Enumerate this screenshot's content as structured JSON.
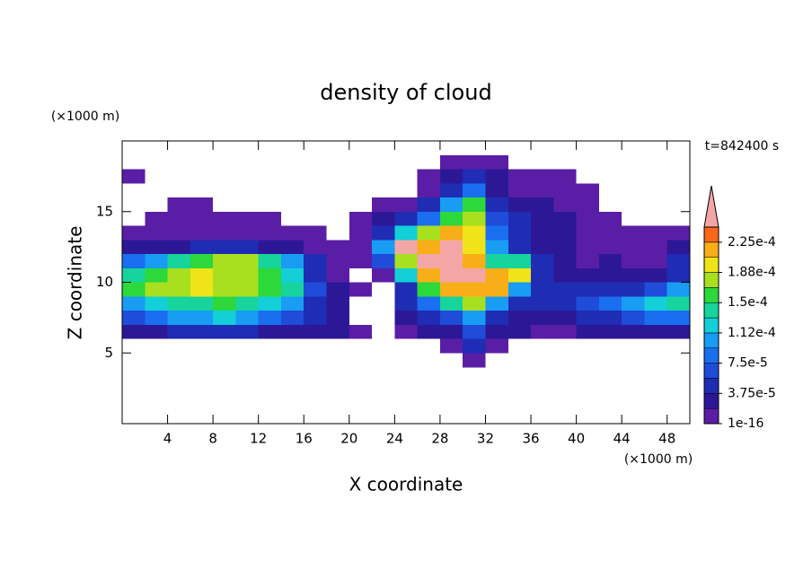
{
  "chart_data": {
    "type": "contour",
    "title": "density of cloud",
    "x_label": "X coordinate",
    "y_label": "Z coordinate",
    "y_unit": "(×1000 m)",
    "x_unit": "(×1000 m)",
    "annotation": "t=842400 s",
    "xlim": [
      0,
      50
    ],
    "ylim": [
      0,
      20
    ],
    "xticks": [
      4,
      8,
      12,
      16,
      20,
      24,
      28,
      32,
      36,
      40,
      44,
      48
    ],
    "yticks": [
      5,
      10,
      15
    ],
    "x": [
      1,
      3,
      5,
      7,
      9,
      11,
      13,
      15,
      17,
      19,
      21,
      23,
      25,
      27,
      29,
      31,
      33,
      35,
      37,
      39,
      41,
      43,
      45,
      47,
      49
    ],
    "y": [
      18.5,
      17.5,
      16.5,
      15.5,
      14.5,
      13.5,
      12.5,
      11.5,
      10.5,
      9.5,
      8.5,
      7.5,
      6.5,
      5.5,
      4.5
    ],
    "z": [
      [
        0,
        0,
        0,
        0,
        0,
        0,
        0,
        0,
        0,
        0,
        0,
        0,
        0,
        0,
        1e-05,
        1e-05,
        1e-05,
        0,
        0,
        0,
        0,
        0,
        0,
        0,
        0
      ],
      [
        1e-05,
        0,
        0,
        0,
        0,
        0,
        0,
        0,
        0,
        0,
        0,
        0,
        0,
        1e-05,
        2.8e-05,
        4.7e-05,
        2.8e-05,
        1e-05,
        1e-05,
        1e-05,
        0,
        0,
        0,
        0,
        0
      ],
      [
        0,
        0,
        0,
        0,
        0,
        0,
        0,
        0,
        0,
        0,
        0,
        0,
        0,
        1e-05,
        4.7e-05,
        8.4e-05,
        2.8e-05,
        1e-05,
        1e-05,
        1e-05,
        1e-05,
        0,
        0,
        0,
        0
      ],
      [
        0,
        0,
        1e-05,
        1e-05,
        0,
        0,
        0,
        0,
        0,
        0,
        0,
        1e-05,
        1e-05,
        4.7e-05,
        0.000103,
        0.000159,
        4.7e-05,
        2.8e-05,
        2.8e-05,
        1e-05,
        1e-05,
        0,
        0,
        0,
        0
      ],
      [
        0,
        1e-05,
        1e-05,
        1e-05,
        1e-05,
        1e-05,
        1e-05,
        0,
        0,
        0,
        1e-05,
        2.8e-05,
        4.7e-05,
        8.4e-05,
        0.000159,
        0.000178,
        6.6e-05,
        4.7e-05,
        2.8e-05,
        2.8e-05,
        1e-05,
        1e-05,
        0,
        0,
        0
      ],
      [
        1e-05,
        1e-05,
        1e-05,
        1e-05,
        1e-05,
        1e-05,
        1e-05,
        1e-05,
        1e-05,
        0,
        1e-05,
        4.7e-05,
        0.000122,
        0.000178,
        0.000216,
        0.000197,
        8.4e-05,
        4.7e-05,
        2.8e-05,
        2.8e-05,
        1e-05,
        1e-05,
        1e-05,
        1e-05,
        1e-05
      ],
      [
        2.8e-05,
        2.8e-05,
        2.8e-05,
        4.7e-05,
        4.7e-05,
        4.7e-05,
        2.8e-05,
        2.8e-05,
        1e-05,
        1e-05,
        1e-05,
        0.000103,
        0.00026,
        0.000216,
        0.00026,
        0.000197,
        0.000103,
        4.7e-05,
        2.8e-05,
        2.8e-05,
        1e-05,
        1e-05,
        1e-05,
        1e-05,
        2.8e-05
      ],
      [
        8.4e-05,
        0.000103,
        0.000141,
        0.000159,
        0.000178,
        0.000178,
        0.000141,
        0.000103,
        4.7e-05,
        1e-05,
        1e-05,
        6.6e-05,
        0.000178,
        0.00026,
        0.00026,
        0.000216,
        0.000141,
        0.000141,
        4.7e-05,
        2.8e-05,
        1e-05,
        2.8e-05,
        1e-05,
        1e-05,
        4.7e-05
      ],
      [
        0.000141,
        0.000159,
        0.000178,
        0.000197,
        0.000178,
        0.000178,
        0.000159,
        0.000122,
        4.7e-05,
        1e-05,
        0,
        1e-05,
        0.000122,
        0.000216,
        0.00026,
        0.00026,
        0.000216,
        0.000197,
        4.7e-05,
        2.8e-05,
        2.8e-05,
        2.8e-05,
        2.8e-05,
        2.8e-05,
        4.7e-05
      ],
      [
        0.000159,
        0.000178,
        0.000178,
        0.000197,
        0.000178,
        0.000178,
        0.000159,
        0.000141,
        6.6e-05,
        2.8e-05,
        1e-05,
        0,
        4.7e-05,
        0.000159,
        0.000216,
        0.000216,
        0.000216,
        0.000103,
        4.7e-05,
        4.7e-05,
        4.7e-05,
        4.7e-05,
        4.7e-05,
        6.6e-05,
        0.000103
      ],
      [
        0.000103,
        0.000122,
        0.000141,
        0.000141,
        0.000159,
        0.000141,
        0.000122,
        0.000103,
        4.7e-05,
        2.8e-05,
        0,
        0,
        4.7e-05,
        8.4e-05,
        0.000141,
        0.000178,
        0.000103,
        4.7e-05,
        4.7e-05,
        4.7e-05,
        6.6e-05,
        8.4e-05,
        0.000103,
        0.000122,
        0.000141
      ],
      [
        6.6e-05,
        8.4e-05,
        0.000103,
        0.000103,
        0.000122,
        0.000103,
        8.4e-05,
        6.6e-05,
        4.7e-05,
        2.8e-05,
        0,
        0,
        2.8e-05,
        4.7e-05,
        6.6e-05,
        0.000103,
        4.7e-05,
        2.8e-05,
        2.8e-05,
        2.8e-05,
        4.7e-05,
        4.7e-05,
        6.6e-05,
        8.4e-05,
        8.4e-05
      ],
      [
        2.8e-05,
        2.8e-05,
        4.7e-05,
        4.7e-05,
        4.7e-05,
        4.7e-05,
        2.8e-05,
        2.8e-05,
        2.8e-05,
        2.8e-05,
        1e-05,
        0,
        1e-05,
        2.8e-05,
        2.8e-05,
        6.6e-05,
        2.8e-05,
        2.8e-05,
        1e-05,
        1e-05,
        2.8e-05,
        2.8e-05,
        2.8e-05,
        2.8e-05,
        2.8e-05
      ],
      [
        0,
        0,
        0,
        0,
        0,
        0,
        0,
        0,
        0,
        0,
        0,
        0,
        0,
        0,
        1e-05,
        4.7e-05,
        1e-05,
        0,
        0,
        0,
        0,
        0,
        0,
        0,
        0
      ],
      [
        0,
        0,
        0,
        0,
        0,
        0,
        0,
        0,
        0,
        0,
        0,
        0,
        0,
        0,
        0,
        1e-05,
        0,
        0,
        0,
        0,
        0,
        0,
        0,
        0,
        0
      ]
    ],
    "colorbar": {
      "levels": [
        1e-16,
        1.875e-05,
        3.75e-05,
        5.625e-05,
        7.5e-05,
        9.375e-05,
        0.0001125,
        0.00013125,
        0.00015,
        0.00016875,
        0.0001875,
        0.00020625,
        0.000225,
        0.00024375
      ],
      "colors": [
        "#5a1ea6",
        "#2c1896",
        "#1f2cb4",
        "#1f4cd8",
        "#1a6ef0",
        "#189cf4",
        "#12cfd8",
        "#16d49c",
        "#2cd83a",
        "#a8e020",
        "#f0e418",
        "#f8ae18",
        "#f86818"
      ],
      "over_color": "#f4a6a6",
      "ticks": [
        {
          "value": 1e-16,
          "label": "1e-16"
        },
        {
          "value": 3.75e-05,
          "label": "3.75e-5"
        },
        {
          "value": 7.5e-05,
          "label": "7.5e-5"
        },
        {
          "value": 0.0001125,
          "label": "1.12e-4"
        },
        {
          "value": 0.00015,
          "label": "1.5e-4"
        },
        {
          "value": 0.0001875,
          "label": "1.88e-4"
        },
        {
          "value": 0.000225,
          "label": "2.25e-4"
        }
      ]
    }
  }
}
